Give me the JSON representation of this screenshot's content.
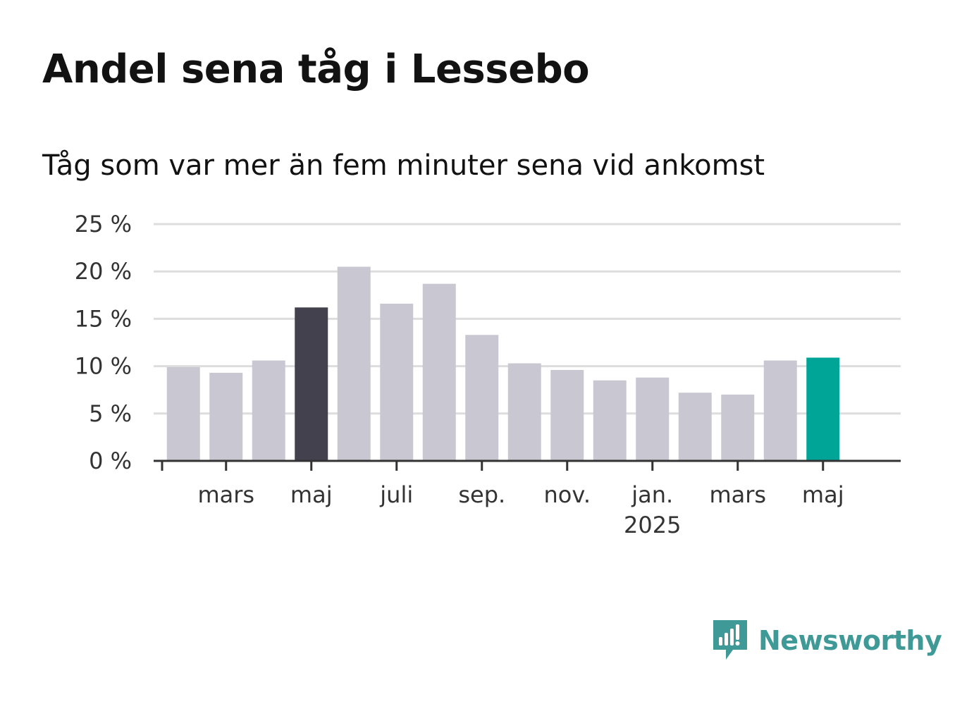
{
  "header": {
    "title": "Andel sena tåg i Lessebo",
    "subtitle": "Tåg som var mer än fem minuter sena vid ankomst"
  },
  "brand": {
    "name": "Newsworthy",
    "color": "#3f9a97"
  },
  "colors": {
    "bar_default": "#c9c8d2",
    "bar_highlight_dark": "#43414d",
    "bar_highlight_latest": "#00a598",
    "grid": "#dddddd",
    "axis": "#333333"
  },
  "chart_data": {
    "type": "bar",
    "title": "Andel sena tåg i Lessebo",
    "subtitle": "Tåg som var mer än fem minuter sena vid ankomst",
    "xlabel": "",
    "ylabel": "",
    "ylim": [
      0,
      25
    ],
    "y_ticks": [
      0,
      5,
      10,
      15,
      20,
      25
    ],
    "y_tick_labels": [
      "0 %",
      "5 %",
      "10 %",
      "15 %",
      "20 %",
      "25 %"
    ],
    "unit": "%",
    "grid": true,
    "categories": [
      "2024-02",
      "2024-03",
      "2024-04",
      "2024-05",
      "2024-06",
      "2024-07",
      "2024-08",
      "2024-09",
      "2024-10",
      "2024-11",
      "2024-12",
      "2025-01",
      "2025-02",
      "2025-03",
      "2025-04",
      "2025-05"
    ],
    "values": [
      9.9,
      9.3,
      10.6,
      16.2,
      20.5,
      16.6,
      18.7,
      13.3,
      10.3,
      9.6,
      8.5,
      8.8,
      7.2,
      7.0,
      10.6,
      10.9
    ],
    "highlight": {
      "2024-05": "dark",
      "2025-05": "latest"
    },
    "x_tick_labels": [
      {
        "category": "2024-03",
        "label": "mars",
        "sublabel": ""
      },
      {
        "category": "2024-05",
        "label": "maj",
        "sublabel": ""
      },
      {
        "category": "2024-07",
        "label": "juli",
        "sublabel": ""
      },
      {
        "category": "2024-09",
        "label": "sep.",
        "sublabel": ""
      },
      {
        "category": "2024-11",
        "label": "nov.",
        "sublabel": ""
      },
      {
        "category": "2025-01",
        "label": "jan.",
        "sublabel": "2025"
      },
      {
        "category": "2025-03",
        "label": "mars",
        "sublabel": ""
      },
      {
        "category": "2025-05",
        "label": "maj",
        "sublabel": ""
      }
    ]
  }
}
